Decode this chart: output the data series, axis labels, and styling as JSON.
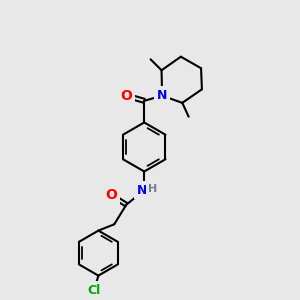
{
  "bg_color": "#e8e8e8",
  "bond_color": "#000000",
  "atom_colors": {
    "O": "#ff0000",
    "N": "#0000ff",
    "Cl": "#00aa00",
    "H": "#708090",
    "C": "#000000"
  },
  "bond_width": 1.5,
  "font_size_atom": 9,
  "fig_size": [
    3.0,
    3.0
  ],
  "dpi": 100
}
